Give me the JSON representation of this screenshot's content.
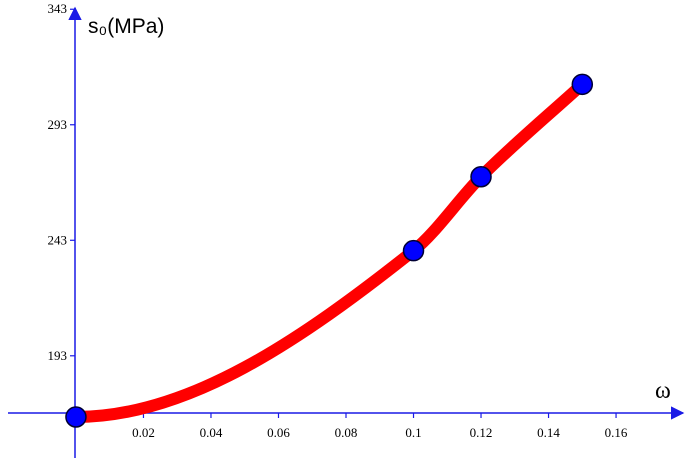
{
  "chart_data": {
    "type": "line",
    "xlabel": "ω",
    "ylabel": "s₀(MPa)",
    "x_ticks": [
      0.02,
      0.04,
      0.06,
      0.08,
      0.1,
      0.12,
      0.14,
      0.16
    ],
    "x_tick_labels": [
      "0.02",
      "0.04",
      "0.06",
      "0.08",
      "0.1",
      "0.12",
      "0.14",
      "0.16"
    ],
    "y_ticks": [
      193,
      243,
      293,
      343
    ],
    "y_tick_labels": [
      "193",
      "243",
      "293",
      "343"
    ],
    "xlim": [
      -0.0225,
      0.1825
    ],
    "ylim": [
      144,
      347
    ],
    "grid": false,
    "series": [
      {
        "line_color": "#ff0000",
        "marker_color": "#0000ff",
        "points": [
          {
            "x": 0.0,
            "y": 166.5
          },
          {
            "x": 0.1,
            "y": 238.5
          },
          {
            "x": 0.12,
            "y": 270.5
          },
          {
            "x": 0.15,
            "y": 310.5
          }
        ]
      }
    ]
  }
}
